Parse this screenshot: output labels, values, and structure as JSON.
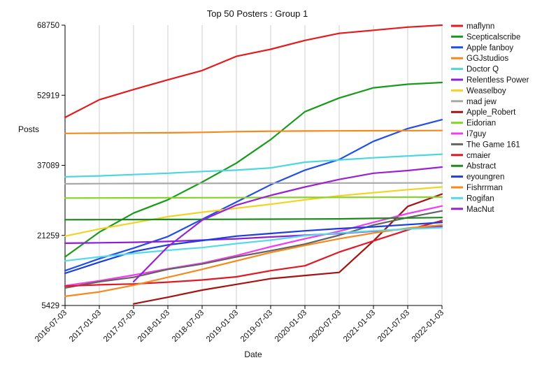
{
  "chart_data": {
    "type": "line",
    "title": "Top 50 Posters : Group 1",
    "xlabel": "Date",
    "ylabel": "Posts",
    "x": [
      "2016-07-03",
      "2017-01-03",
      "2017-07-03",
      "2018-01-03",
      "2018-07-03",
      "2019-01-03",
      "2019-07-03",
      "2020-01-03",
      "2020-07-03",
      "2021-01-03",
      "2021-07-03",
      "2022-01-03"
    ],
    "ylim": [
      5429,
      68750
    ],
    "yticks": [
      "5429",
      "21259",
      "37089",
      "52919",
      "68750"
    ],
    "grid": true,
    "legend_position": "right",
    "series": [
      {
        "name": "maflynn",
        "color": "#e41a1c",
        "values": [
          47900,
          51900,
          54200,
          56400,
          58500,
          61700,
          63300,
          65300,
          66900,
          67600,
          68300,
          68750
        ]
      },
      {
        "name": "Scepticalscribe",
        "color": "#1a9a1a",
        "values": [
          16400,
          22000,
          26300,
          29300,
          33300,
          37600,
          42900,
          49200,
          52300,
          54600,
          55400,
          55800
        ]
      },
      {
        "name": "Apple fanboy",
        "color": "#1f4ee8",
        "values": [
          13300,
          16000,
          18400,
          21000,
          24900,
          28800,
          32700,
          36000,
          38400,
          42500,
          45400,
          47400
        ]
      },
      {
        "name": "GGJstudios",
        "color": "#f28a1e",
        "values": [
          44300,
          44350,
          44400,
          44450,
          44550,
          44700,
          44800,
          44850,
          44880,
          44900,
          44920,
          44950
        ]
      },
      {
        "name": "Doctor Q",
        "color": "#4dd6e0",
        "values": [
          34500,
          34700,
          35000,
          35300,
          35700,
          36000,
          36500,
          37800,
          38300,
          38800,
          39200,
          39600
        ]
      },
      {
        "name": "Relentless Power",
        "color": "#8f1ed8",
        "values": [
          19500,
          19600,
          19700,
          19900,
          20200,
          20500,
          20900,
          21300,
          21700,
          22200,
          22700,
          23300
        ]
      },
      {
        "name": "Weaselboy",
        "color": "#f2d323",
        "values": [
          21100,
          22700,
          24100,
          25500,
          26500,
          27400,
          28300,
          29300,
          30200,
          30900,
          31600,
          32200
        ]
      },
      {
        "name": "mad jew",
        "color": "#a8a8a8",
        "values": [
          32900,
          32950,
          32980,
          33000,
          33020,
          33040,
          33060,
          33080,
          33090,
          33100,
          33110,
          33120
        ]
      },
      {
        "name": "Apple_Robert",
        "color": "#a31313",
        "values": [
          null,
          null,
          5800,
          7300,
          8900,
          10200,
          11500,
          12200,
          12900,
          20000,
          27800,
          30600
        ]
      },
      {
        "name": "Eidorian",
        "color": "#86d42a",
        "values": [
          29700,
          29720,
          29740,
          29760,
          29780,
          29800,
          29820,
          29840,
          29860,
          29880,
          29900,
          29920
        ]
      },
      {
        "name": "I7guy",
        "color": "#f23af0",
        "values": [
          9900,
          11000,
          12300,
          13700,
          15000,
          16700,
          18700,
          20500,
          22200,
          24200,
          26200,
          27900
        ]
      },
      {
        "name": "The Game 161",
        "color": "#636363",
        "values": [
          9400,
          10800,
          11800,
          13600,
          14800,
          16400,
          17800,
          19300,
          21300,
          23600,
          25300,
          26800
        ]
      },
      {
        "name": "cmaier",
        "color": "#e01a25",
        "values": [
          9800,
          10100,
          10300,
          10700,
          11200,
          11900,
          13300,
          14400,
          17500,
          20000,
          22500,
          24600
        ]
      },
      {
        "name": "Abstract",
        "color": "#1c8a1c",
        "values": [
          24800,
          24820,
          24840,
          24860,
          24880,
          24900,
          24930,
          24960,
          24990,
          25100,
          25200,
          25300
        ]
      },
      {
        "name": "eyoungren",
        "color": "#1a3ee0",
        "values": [
          12700,
          15200,
          17600,
          19100,
          20100,
          21100,
          21700,
          22300,
          22800,
          23200,
          23700,
          24200
        ]
      },
      {
        "name": "Fishrrman",
        "color": "#f5891a",
        "values": [
          7500,
          8500,
          10000,
          11800,
          13600,
          15500,
          17400,
          19000,
          20500,
          21800,
          22900,
          23600
        ]
      },
      {
        "name": "Rogifan",
        "color": "#55dbe8",
        "values": [
          15500,
          16400,
          17200,
          17900,
          18500,
          19400,
          20200,
          21200,
          21800,
          22300,
          22700,
          23000
        ]
      },
      {
        "name": "MacNut",
        "color": "#9a22d4",
        "values": [
          null,
          null,
          10800,
          18700,
          24700,
          28100,
          30300,
          32200,
          33900,
          35300,
          35900,
          36700
        ]
      }
    ]
  }
}
